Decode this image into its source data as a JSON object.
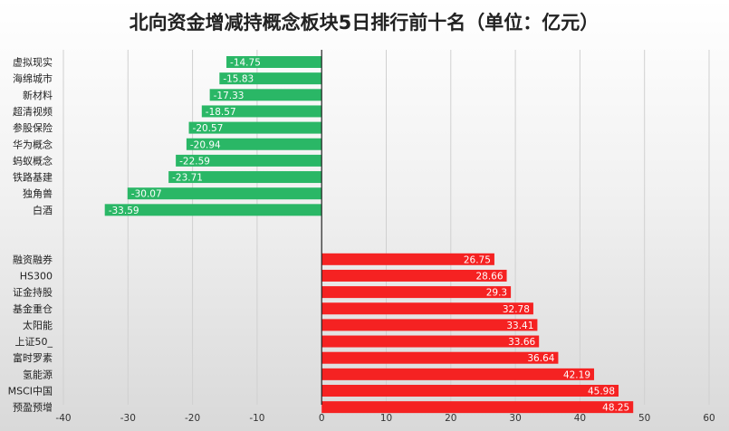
{
  "chart_data": {
    "type": "bar",
    "orientation": "horizontal",
    "title": "北向资金增减持概念板块5日排行前十名（单位：亿元）",
    "xlim": [
      -40,
      60
    ],
    "xticks": [
      -40,
      -30,
      -20,
      -10,
      0,
      10,
      20,
      30,
      40,
      50,
      60
    ],
    "grid": true,
    "colors": {
      "negative": "#2ab766",
      "positive": "#f52222"
    },
    "series": [
      {
        "group": "decrease",
        "categories": [
          "虚拟现实",
          "海绵城市",
          "新材料",
          "超清视频",
          "参股保险",
          "华为概念",
          "蚂蚁概念",
          "铁路基建",
          "独角兽",
          "白酒"
        ],
        "values": [
          -14.75,
          -15.83,
          -17.33,
          -18.57,
          -20.57,
          -20.94,
          -22.59,
          -23.71,
          -30.07,
          -33.59
        ]
      },
      {
        "group": "increase",
        "categories": [
          "融资融券",
          "HS300",
          "证金持股",
          "基金重仓",
          "太阳能",
          "上证50_",
          "富时罗素",
          "氢能源",
          "MSCI中国",
          "预盈预增"
        ],
        "values": [
          26.75,
          28.66,
          29.3,
          32.78,
          33.41,
          33.66,
          36.64,
          42.19,
          45.98,
          48.25
        ]
      }
    ]
  }
}
